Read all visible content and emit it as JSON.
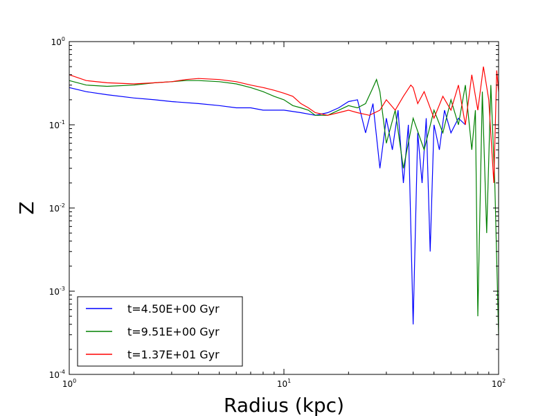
{
  "chart_data": {
    "type": "line",
    "title": "",
    "xlabel": "Radius (kpc)",
    "ylabel": "Z",
    "xscale": "log",
    "yscale": "log",
    "xlim": [
      1,
      100
    ],
    "ylim": [
      0.0001,
      1
    ],
    "x_ticks": [
      {
        "base": "10",
        "exp": "0",
        "value": 1
      },
      {
        "base": "10",
        "exp": "1",
        "value": 10
      },
      {
        "base": "10",
        "exp": "2",
        "value": 100
      }
    ],
    "y_ticks": [
      {
        "base": "10",
        "exp": "-4",
        "value": 0.0001
      },
      {
        "base": "10",
        "exp": "-3",
        "value": 0.001
      },
      {
        "base": "10",
        "exp": "-2",
        "value": 0.01
      },
      {
        "base": "10",
        "exp": "-1",
        "value": 0.1
      },
      {
        "base": "10",
        "exp": "0",
        "value": 1
      }
    ],
    "grid": false,
    "legend_position": "lower-left",
    "series": [
      {
        "name": "t=4.50E+00 Gyr",
        "color": "#0000ff",
        "x": [
          1.0,
          1.2,
          1.5,
          2.0,
          2.5,
          3.0,
          4.0,
          5.0,
          6.0,
          7.0,
          8.0,
          10.0,
          12.0,
          14.0,
          16.0,
          18.0,
          20.0,
          22.0,
          24.0,
          26.0,
          28.0,
          30.0,
          32.0,
          34.0,
          36.0,
          38.0,
          40.0,
          42.0,
          44.0,
          46.0,
          48.0,
          50.0,
          53.0,
          56.0,
          60.0,
          65.0,
          70.0
        ],
        "y": [
          0.28,
          0.25,
          0.23,
          0.21,
          0.2,
          0.19,
          0.18,
          0.17,
          0.16,
          0.16,
          0.15,
          0.15,
          0.14,
          0.13,
          0.14,
          0.16,
          0.19,
          0.2,
          0.08,
          0.18,
          0.03,
          0.12,
          0.05,
          0.15,
          0.02,
          0.1,
          0.0004,
          0.08,
          0.02,
          0.12,
          0.003,
          0.1,
          0.05,
          0.15,
          0.08,
          0.12,
          0.1
        ]
      },
      {
        "name": "t=9.51E+00 Gyr",
        "color": "#008000",
        "x": [
          1.0,
          1.2,
          1.5,
          2.0,
          2.5,
          3.0,
          3.5,
          4.0,
          5.0,
          6.0,
          7.0,
          8.0,
          9.0,
          10.0,
          11.0,
          12.0,
          13.0,
          14.0,
          16.0,
          18.0,
          20.0,
          22.0,
          24.0,
          26.0,
          27.0,
          28.0,
          30.0,
          33.0,
          36.0,
          40.0,
          45.0,
          50.0,
          55.0,
          60.0,
          65.0,
          70.0,
          75.0,
          78.0,
          80.0,
          84.0,
          88.0,
          92.0,
          96.0,
          100.0
        ],
        "y": [
          0.34,
          0.3,
          0.29,
          0.3,
          0.32,
          0.33,
          0.34,
          0.34,
          0.33,
          0.31,
          0.28,
          0.25,
          0.22,
          0.2,
          0.17,
          0.16,
          0.15,
          0.13,
          0.13,
          0.15,
          0.17,
          0.16,
          0.18,
          0.28,
          0.35,
          0.25,
          0.06,
          0.15,
          0.03,
          0.12,
          0.05,
          0.15,
          0.08,
          0.2,
          0.1,
          0.3,
          0.05,
          0.15,
          0.0005,
          0.25,
          0.005,
          0.3,
          0.02,
          0.0003
        ]
      },
      {
        "name": "t=1.37E+01 Gyr",
        "color": "#ff0000",
        "x": [
          1.0,
          1.2,
          1.5,
          2.0,
          2.5,
          3.0,
          3.5,
          4.0,
          5.0,
          6.0,
          7.0,
          8.0,
          9.0,
          10.0,
          11.0,
          12.0,
          13.0,
          14.0,
          16.0,
          18.0,
          20.0,
          22.0,
          25.0,
          28.0,
          30.0,
          33.0,
          36.0,
          39.0,
          40.0,
          42.0,
          45.0,
          50.0,
          55.0,
          60.0,
          65.0,
          70.0,
          75.0,
          80.0,
          85.0,
          90.0,
          95.0,
          98.0,
          100.0
        ],
        "y": [
          0.4,
          0.34,
          0.32,
          0.31,
          0.32,
          0.33,
          0.35,
          0.36,
          0.35,
          0.33,
          0.3,
          0.28,
          0.26,
          0.24,
          0.22,
          0.18,
          0.16,
          0.14,
          0.13,
          0.14,
          0.15,
          0.14,
          0.13,
          0.15,
          0.2,
          0.15,
          0.22,
          0.3,
          0.28,
          0.18,
          0.25,
          0.12,
          0.22,
          0.15,
          0.3,
          0.1,
          0.4,
          0.15,
          0.5,
          0.2,
          0.02,
          0.45,
          0.25
        ]
      }
    ]
  }
}
